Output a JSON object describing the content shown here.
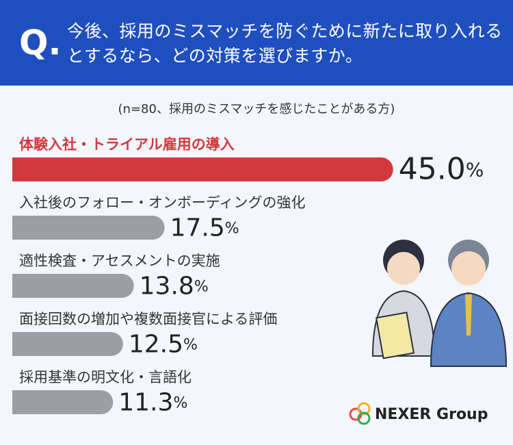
{
  "header_mark": "Q.",
  "logo": "NEXER Group",
  "chart_data": {
    "type": "bar",
    "title": "今後、採用のミスマッチを防ぐために新たに取り入れるとするなら、どの対策を選びますか。",
    "subtitle": "(n=80、採用のミスマッチを感じたことがある方)",
    "categories": [
      "体験入社・トライアル雇用の導入",
      "入社後のフォロー・オンボーディングの強化",
      "適性検査・アセスメントの実施",
      "面接回数の増加や複数面接官による評価",
      "採用基準の明文化・言語化"
    ],
    "values": [
      45.0,
      17.5,
      13.8,
      12.5,
      11.3
    ],
    "value_labels": [
      "45.0%",
      "17.5%",
      "13.8%",
      "12.5%",
      "11.3%"
    ],
    "colors": [
      "#d2383d",
      "#9c9ea3",
      "#9c9ea3",
      "#9c9ea3",
      "#9c9ea3"
    ]
  }
}
